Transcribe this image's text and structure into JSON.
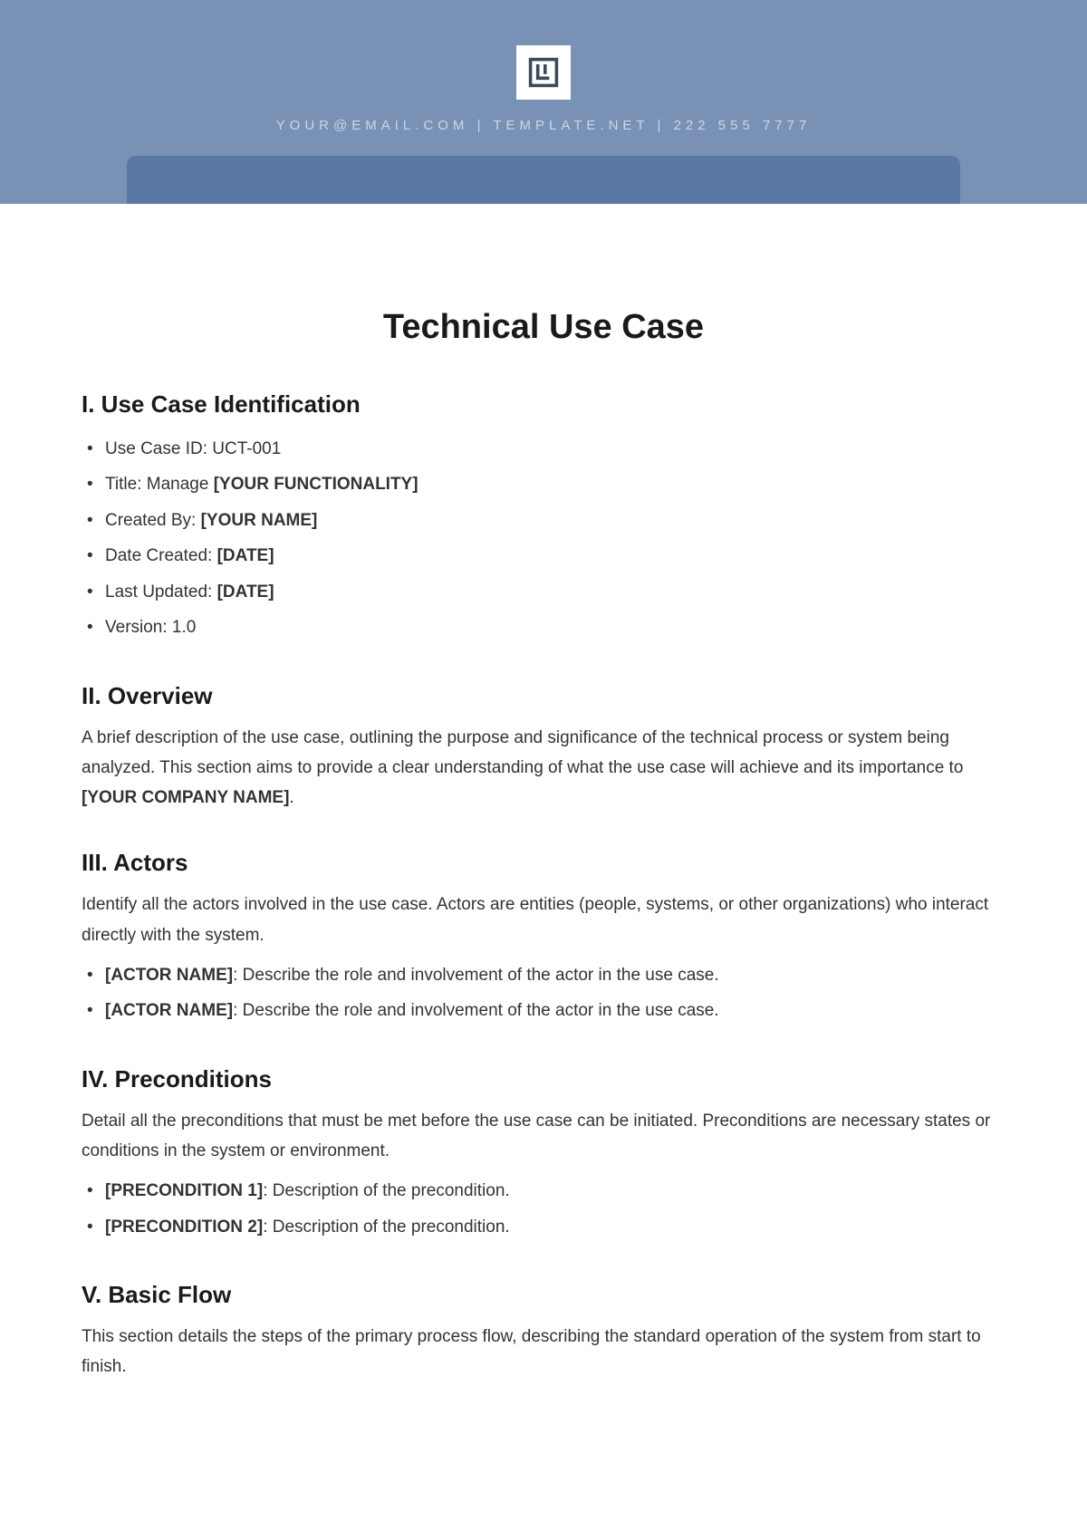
{
  "header": {
    "email": "YOUR@EMAIL.COM",
    "site": "TEMPLATE.NET",
    "phone": "222 555 7777",
    "colors": {
      "band": "#7991b4",
      "subband": "#5a78a5",
      "contact_text": "#cbd6e5",
      "logo_bg": "#ffffff",
      "logo_stroke": "#3a4a5a"
    }
  },
  "title": "Technical Use Case",
  "sections": {
    "identification": {
      "heading": "I. Use Case Identification",
      "items": [
        {
          "label": "Use Case ID:",
          "value": " UCT-001",
          "bold_value": false
        },
        {
          "label": "Title: Manage ",
          "value": "[YOUR FUNCTIONALITY]",
          "bold_value": true
        },
        {
          "label": "Created By: ",
          "value": "[YOUR NAME]",
          "bold_value": true
        },
        {
          "label": "Date Created: ",
          "value": "[DATE]",
          "bold_value": true
        },
        {
          "label": "Last Updated: ",
          "value": "[DATE]",
          "bold_value": true
        },
        {
          "label": "Version:",
          "value": " 1.0",
          "bold_value": false
        }
      ]
    },
    "overview": {
      "heading": "II. Overview",
      "text_pre": "A brief description of the use case, outlining the purpose and significance of the technical process or system being analyzed. This section aims to provide a clear understanding of what the use case will achieve and its importance to ",
      "text_bold": "[YOUR COMPANY NAME]",
      "text_post": "."
    },
    "actors": {
      "heading": "III. Actors",
      "intro": "Identify all the actors involved in the use case. Actors are entities (people, systems, or other organizations) who interact directly with the system.",
      "items": [
        {
          "bold": "[ACTOR NAME]",
          "rest": ": Describe the role and involvement of the actor in the use case."
        },
        {
          "bold": "[ACTOR NAME]",
          "rest": ": Describe the role and involvement of the actor in the use case."
        }
      ]
    },
    "preconditions": {
      "heading": "IV. Preconditions",
      "intro": "Detail all the preconditions that must be met before the use case can be initiated. Preconditions are necessary states or conditions in the system or environment.",
      "items": [
        {
          "bold": "[PRECONDITION 1]",
          "rest": ": Description of the precondition."
        },
        {
          "bold": "[PRECONDITION 2]",
          "rest": ": Description of the precondition."
        }
      ]
    },
    "basicflow": {
      "heading": "V. Basic Flow",
      "intro": "This section details the steps of the primary process flow, describing the standard operation of the system from start to finish."
    }
  },
  "typography": {
    "title_fontsize": 38,
    "h2_fontsize": 26,
    "body_fontsize": 19,
    "body_color": "#333333",
    "heading_color": "#1a1a1a"
  }
}
